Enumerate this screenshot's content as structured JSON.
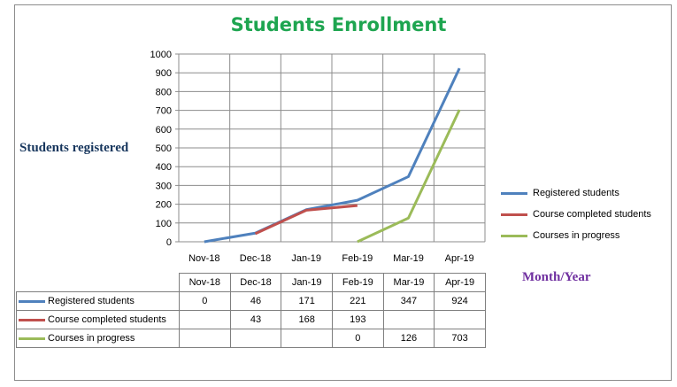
{
  "chart_data": {
    "type": "line",
    "title": "Students Enrollment",
    "xlabel": "Month/Year",
    "ylabel": "Students registered",
    "categories": [
      "Nov-18",
      "Dec-18",
      "Jan-19",
      "Feb-19",
      "Mar-19",
      "Apr-19"
    ],
    "ylim": [
      0,
      1000
    ],
    "yticks": [
      "0",
      "100",
      "200",
      "300",
      "400",
      "500",
      "600",
      "700",
      "800",
      "900",
      "1000"
    ],
    "grid": true,
    "legend_position": "right",
    "series": [
      {
        "name": "Registered students",
        "color": "#4f81bd",
        "values": [
          0,
          46,
          171,
          221,
          347,
          924
        ],
        "labels": [
          "0",
          "46",
          "171",
          "221",
          "347",
          "924"
        ]
      },
      {
        "name": "Course completed students",
        "color": "#c0504d",
        "values": [
          null,
          43,
          168,
          193,
          null,
          null
        ],
        "labels": [
          "",
          "43",
          "168",
          "193",
          "",
          ""
        ]
      },
      {
        "name": "Courses in progress",
        "color": "#9bbb59",
        "values": [
          null,
          null,
          null,
          0,
          126,
          703
        ],
        "labels": [
          "",
          "",
          "",
          "0",
          "126",
          "703"
        ]
      }
    ]
  }
}
